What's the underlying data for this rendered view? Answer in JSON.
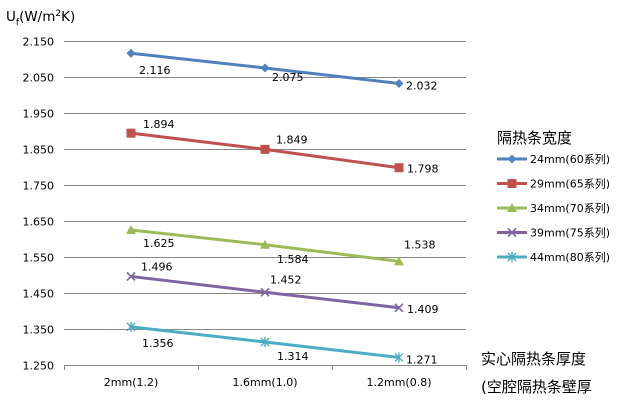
{
  "chart_data": {
    "type": "line",
    "ylabel": {
      "main": "U",
      "sub": "f",
      "unit_a": "(W/m",
      "sup": "2",
      "unit_b": "K)"
    },
    "ylim": [
      1.25,
      2.15
    ],
    "ytick_step": 0.1,
    "yticks": [
      "2.150",
      "2.050",
      "1.950",
      "1.850",
      "1.750",
      "1.650",
      "1.550",
      "1.450",
      "1.350",
      "1.250"
    ],
    "categories": [
      "2mm(1.2)",
      "1.6mm(1.0)",
      "1.2mm(0.8)"
    ],
    "xtitle": [
      "实心隔热条厚度",
      "(空腔隔热条壁厚"
    ],
    "legend_title": "隔热条宽度",
    "series": [
      {
        "name": "24mm(60系列)",
        "color": "#4F81BD",
        "marker": "diamond",
        "values": [
          2.116,
          2.075,
          2.032
        ],
        "labels": [
          "2.116",
          "2.075",
          "2.032"
        ]
      },
      {
        "name": "29mm(65系列)",
        "color": "#C0504D",
        "marker": "square",
        "values": [
          1.894,
          1.849,
          1.798
        ],
        "labels": [
          "1.894",
          "1.849",
          "1.798"
        ]
      },
      {
        "name": "34mm(70系列)",
        "color": "#9BBB59",
        "marker": "triangle",
        "values": [
          1.625,
          1.584,
          1.538
        ],
        "labels": [
          "1.625",
          "1.584",
          "1.538"
        ]
      },
      {
        "name": "39mm(75系列)",
        "color": "#8064A2",
        "marker": "x",
        "values": [
          1.496,
          1.452,
          1.409
        ],
        "labels": [
          "1.496",
          "1.452",
          "1.409"
        ]
      },
      {
        "name": "44mm(80系列)",
        "color": "#4BACC6",
        "marker": "star",
        "values": [
          1.356,
          1.314,
          1.271
        ],
        "labels": [
          "1.356",
          "1.314",
          "1.271"
        ]
      }
    ]
  }
}
